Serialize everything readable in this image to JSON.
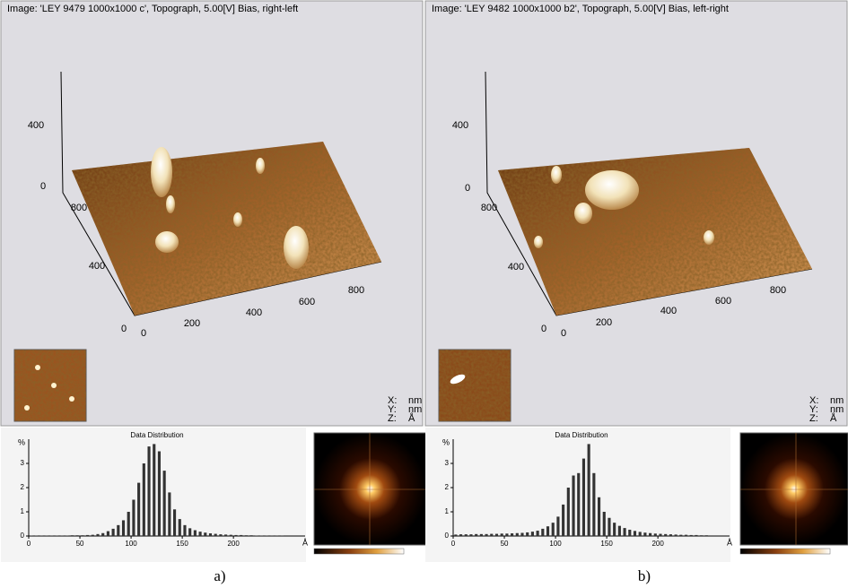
{
  "panels": [
    {
      "caption": "a)",
      "title": "Image: 'LEY 9479 1000x1000 c', Topograph, 5.00[V] Bias, right-left",
      "surface": {
        "z_ticks": [
          "400",
          "0"
        ],
        "y_ticks": [
          "800",
          "400",
          "0"
        ],
        "x_ticks": [
          "0",
          "200",
          "400",
          "600",
          "800"
        ]
      },
      "readout": {
        "labels": [
          "X:",
          "Y:",
          "Z:"
        ],
        "units": [
          "nm",
          "nm",
          "Å"
        ]
      },
      "histogram": {
        "type": "histogram",
        "title": "Data Distribution",
        "y_unit": "%",
        "x_unit": "Å",
        "xlim": [
          0,
          270
        ],
        "ylim": [
          0,
          4
        ],
        "xticks": [
          0,
          50,
          100,
          150,
          200
        ],
        "yticks": [
          0,
          1,
          2,
          3
        ],
        "bins": [
          0,
          5,
          10,
          15,
          20,
          25,
          30,
          35,
          40,
          45,
          50,
          55,
          60,
          65,
          70,
          75,
          80,
          85,
          90,
          95,
          100,
          105,
          110,
          115,
          120,
          125,
          130,
          135,
          140,
          145,
          150,
          155,
          160,
          165,
          170,
          175,
          180,
          185,
          190,
          195,
          200,
          205,
          210,
          215,
          220,
          225,
          230,
          235,
          240,
          245,
          250
        ],
        "values": [
          0.02,
          0.02,
          0.02,
          0.02,
          0.02,
          0.02,
          0.02,
          0.02,
          0.03,
          0.03,
          0.03,
          0.04,
          0.05,
          0.08,
          0.12,
          0.2,
          0.3,
          0.45,
          0.65,
          1.0,
          1.5,
          2.2,
          3.0,
          3.7,
          3.8,
          3.5,
          2.7,
          1.8,
          1.1,
          0.7,
          0.45,
          0.32,
          0.24,
          0.18,
          0.14,
          0.11,
          0.09,
          0.07,
          0.06,
          0.05,
          0.04,
          0.04,
          0.03,
          0.03,
          0.02,
          0.02,
          0.02,
          0.01,
          0.01,
          0.01
        ]
      }
    },
    {
      "caption": "b)",
      "title": "Image: 'LEY 9482 1000x1000 b2', Topograph, 5.00[V] Bias, left-right",
      "surface": {
        "z_ticks": [
          "400",
          "0"
        ],
        "y_ticks": [
          "800",
          "400",
          "0"
        ],
        "x_ticks": [
          "0",
          "200",
          "400",
          "600",
          "800"
        ]
      },
      "readout": {
        "labels": [
          "X:",
          "Y:",
          "Z:"
        ],
        "units": [
          "nm",
          "nm",
          "Å"
        ]
      },
      "histogram": {
        "type": "histogram",
        "title": "Data Distribution",
        "y_unit": "%",
        "x_unit": "Å",
        "xlim": [
          0,
          270
        ],
        "ylim": [
          0,
          4
        ],
        "xticks": [
          0,
          50,
          100,
          150,
          200
        ],
        "yticks": [
          0,
          1,
          2,
          3
        ],
        "bins": [
          0,
          5,
          10,
          15,
          20,
          25,
          30,
          35,
          40,
          45,
          50,
          55,
          60,
          65,
          70,
          75,
          80,
          85,
          90,
          95,
          100,
          105,
          110,
          115,
          120,
          125,
          130,
          135,
          140,
          145,
          150,
          155,
          160,
          165,
          170,
          175,
          180,
          185,
          190,
          195,
          200,
          205,
          210,
          215,
          220,
          225,
          230,
          235,
          240,
          245,
          250
        ],
        "values": [
          0.06,
          0.07,
          0.07,
          0.07,
          0.08,
          0.08,
          0.08,
          0.09,
          0.09,
          0.1,
          0.1,
          0.11,
          0.12,
          0.13,
          0.15,
          0.18,
          0.22,
          0.3,
          0.4,
          0.55,
          0.8,
          1.3,
          2.0,
          2.5,
          2.6,
          3.2,
          3.8,
          2.6,
          1.6,
          1.0,
          0.75,
          0.55,
          0.42,
          0.33,
          0.26,
          0.21,
          0.17,
          0.14,
          0.12,
          0.1,
          0.09,
          0.08,
          0.07,
          0.06,
          0.05,
          0.05,
          0.04,
          0.04,
          0.03,
          0.03
        ]
      }
    }
  ]
}
